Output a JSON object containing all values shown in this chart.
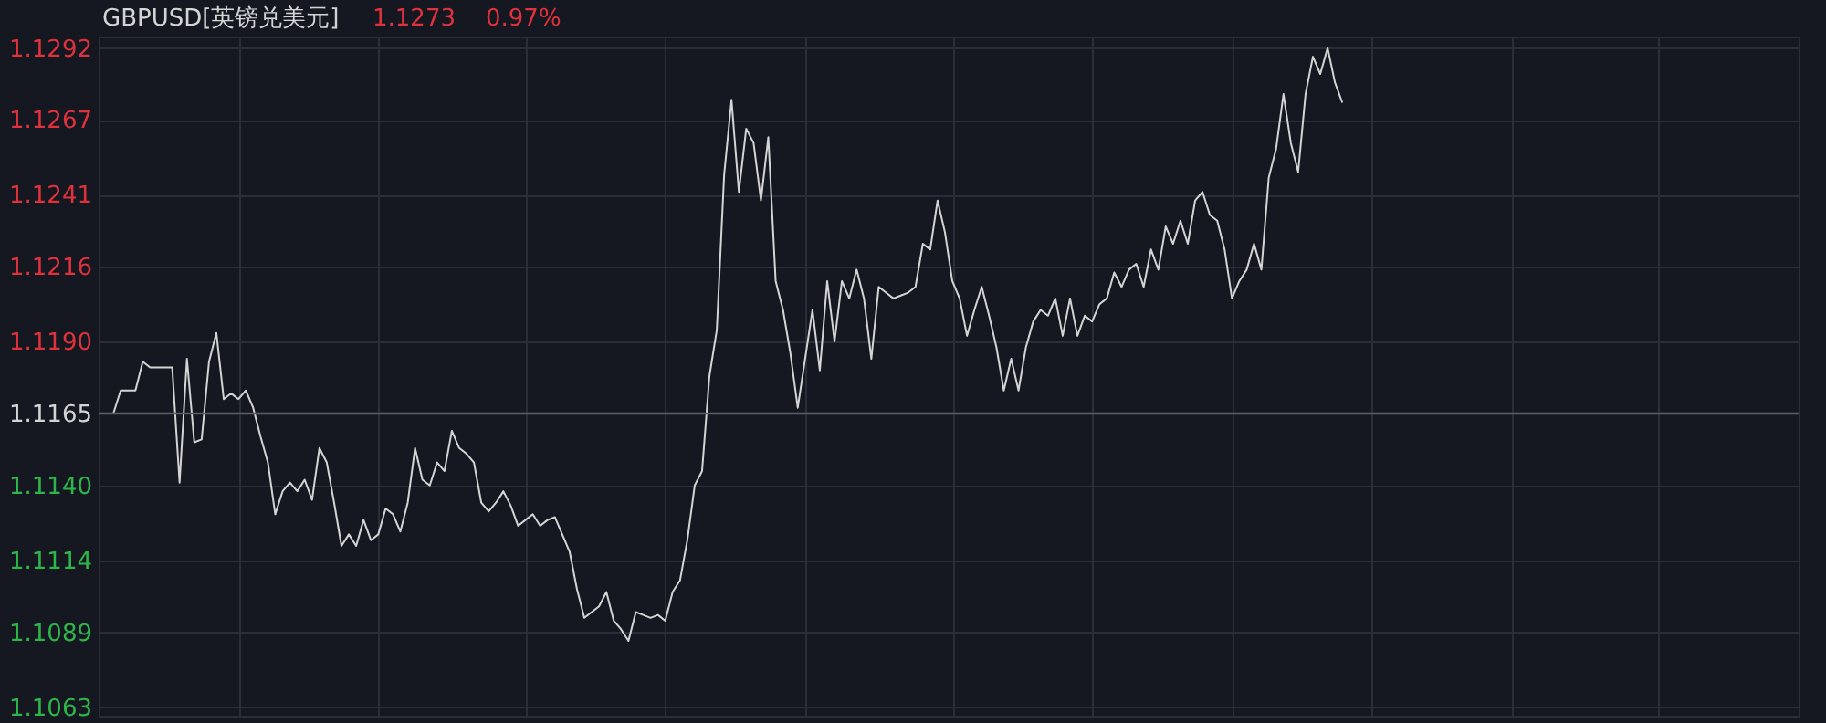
{
  "chart_data": {
    "type": "line",
    "title": "GBPUSD[英镑兑美元]",
    "annotations": [
      "1.1273",
      "0.97%"
    ],
    "categories": [
      null,
      null,
      null,
      null,
      null,
      null,
      null,
      null,
      null,
      null,
      null,
      null,
      null,
      null,
      null,
      null,
      null,
      null,
      null,
      null,
      null,
      null,
      null,
      null,
      null,
      null,
      null,
      null,
      null,
      null,
      null,
      null,
      null,
      null,
      null,
      null,
      null,
      null,
      null,
      null,
      null,
      null,
      null,
      null,
      null,
      null,
      null,
      null,
      null,
      null,
      null,
      null,
      null,
      null,
      null,
      null,
      null,
      null,
      null,
      null,
      null,
      null,
      null,
      null,
      null,
      null,
      null,
      null,
      null,
      null,
      null,
      null,
      null,
      null,
      null,
      null,
      null,
      null,
      null,
      null,
      null,
      null,
      null,
      null,
      null,
      null,
      null,
      null,
      null,
      null,
      null,
      null,
      null,
      null,
      null,
      null,
      null,
      null,
      null,
      null,
      null,
      null,
      null,
      null,
      null,
      null,
      null,
      null,
      null,
      null,
      null,
      null,
      null,
      null,
      null,
      null,
      null,
      null,
      null,
      null,
      null,
      null,
      null,
      null,
      null,
      null,
      null,
      null,
      null,
      null,
      null,
      null,
      null,
      null,
      null,
      null,
      null,
      null,
      null,
      null,
      null,
      null,
      null,
      null,
      null,
      null,
      null,
      null,
      null,
      null,
      null,
      null,
      null,
      null,
      null,
      null,
      null,
      null,
      null,
      null,
      null,
      null,
      null,
      null,
      null,
      null,
      null,
      null,
      null,
      null,
      null,
      null,
      null,
      null,
      null,
      null,
      null,
      null,
      null,
      null,
      null,
      null,
      null,
      null,
      null,
      null,
      null,
      null,
      null,
      null,
      null,
      null,
      null,
      null,
      null,
      null,
      null,
      null,
      null,
      null,
      null,
      null,
      null,
      null,
      null,
      null,
      null,
      null,
      null,
      null,
      null,
      null,
      null,
      null,
      null,
      null,
      null,
      null,
      null,
      null,
      null,
      null,
      null,
      null,
      null,
      null,
      null,
      null,
      null,
      null,
      null,
      null
    ],
    "series": [
      {
        "color": "#d4d4d4",
        "values": [
          1.1165,
          1.1165,
          1.1165,
          1.1173,
          1.1173,
          1.1173,
          1.1183,
          1.1181,
          1.1181,
          1.1181,
          1.1181,
          1.1141,
          1.1184,
          1.1155,
          1.1156,
          1.1183,
          1.1193,
          1.117,
          1.1172,
          1.117,
          1.1173,
          1.1167,
          1.1157,
          1.1148,
          1.113,
          1.1138,
          1.1141,
          1.1138,
          1.1142,
          1.1135,
          1.1153,
          1.1148,
          1.1134,
          1.1119,
          1.1123,
          1.1119,
          1.1128,
          1.1121,
          1.1123,
          1.1132,
          1.113,
          1.1124,
          1.1134,
          1.1153,
          1.1142,
          1.114,
          1.1148,
          1.1145,
          1.1159,
          1.1153,
          1.1151,
          1.1148,
          1.1134,
          1.1131,
          1.1134,
          1.1138,
          1.1133,
          1.1126,
          1.1128,
          1.113,
          1.1126,
          1.1128,
          1.1129,
          1.1123,
          1.1117,
          1.1104,
          1.1094,
          1.1096,
          1.1098,
          1.1103,
          1.1093,
          1.109,
          1.1086,
          1.1096,
          1.1095,
          1.1094,
          1.1095,
          1.1093,
          1.1103,
          1.1107,
          1.1121,
          1.114,
          1.1145,
          1.1178,
          1.1194,
          1.1248,
          1.1274,
          1.1242,
          1.1264,
          1.1259,
          1.1239,
          1.1261,
          1.1211,
          1.1201,
          1.1186,
          1.1167,
          1.1184,
          1.1201,
          1.118,
          1.1211,
          1.119,
          1.1211,
          1.1205,
          1.1215,
          1.1205,
          1.1184,
          1.1209,
          1.1207,
          1.1205,
          1.1206,
          1.1207,
          1.1209,
          1.1224,
          1.1222,
          1.1239,
          1.1228,
          1.1211,
          1.1205,
          1.1192,
          1.1201,
          1.1209,
          1.1199,
          1.1188,
          1.1173,
          1.1184,
          1.1173,
          1.1188,
          1.1197,
          1.1201,
          1.1199,
          1.1205,
          1.1192,
          1.1205,
          1.1192,
          1.1199,
          1.1197,
          1.1203,
          1.1205,
          1.1214,
          1.1209,
          1.1215,
          1.1217,
          1.1209,
          1.1222,
          1.1215,
          1.123,
          1.1224,
          1.1232,
          1.1224,
          1.1239,
          1.1242,
          1.1234,
          1.1232,
          1.1222,
          1.1205,
          1.1211,
          1.1215,
          1.1224,
          1.1215,
          1.1247,
          1.1257,
          1.1276,
          1.1259,
          1.1249,
          1.1276,
          1.1289,
          1.1283,
          1.1292,
          1.128,
          1.1273,
          null,
          null,
          null,
          null,
          null,
          null,
          null,
          null,
          null,
          null,
          null,
          null,
          null,
          null,
          null,
          null,
          null,
          null,
          null,
          null,
          null,
          null,
          null,
          null,
          null,
          null,
          null,
          null,
          null,
          null,
          null,
          null,
          null,
          null,
          null,
          null,
          null,
          null,
          null,
          null,
          null,
          null,
          null,
          null,
          null,
          null,
          null,
          null,
          null,
          null,
          null,
          null,
          null,
          null,
          null,
          null,
          null,
          null,
          null,
          null,
          null,
          null
        ]
      }
    ],
    "ylim": [
      1.106,
      1.1296
    ],
    "yticks": [
      1.1063,
      1.1089,
      1.1114,
      {
        "value": 1.114,
        "label": "1.1140"
      },
      1.1165,
      {
        "value": 1.119,
        "label": "1.1190"
      },
      1.1216,
      1.1241,
      1.1267,
      1.1292
    ],
    "ref_lines": [
      {
        "axis": "y",
        "value": 1.1165,
        "color": "#5a5e66"
      }
    ],
    "grid": true,
    "line_style": "solid",
    "marker": "none"
  }
}
